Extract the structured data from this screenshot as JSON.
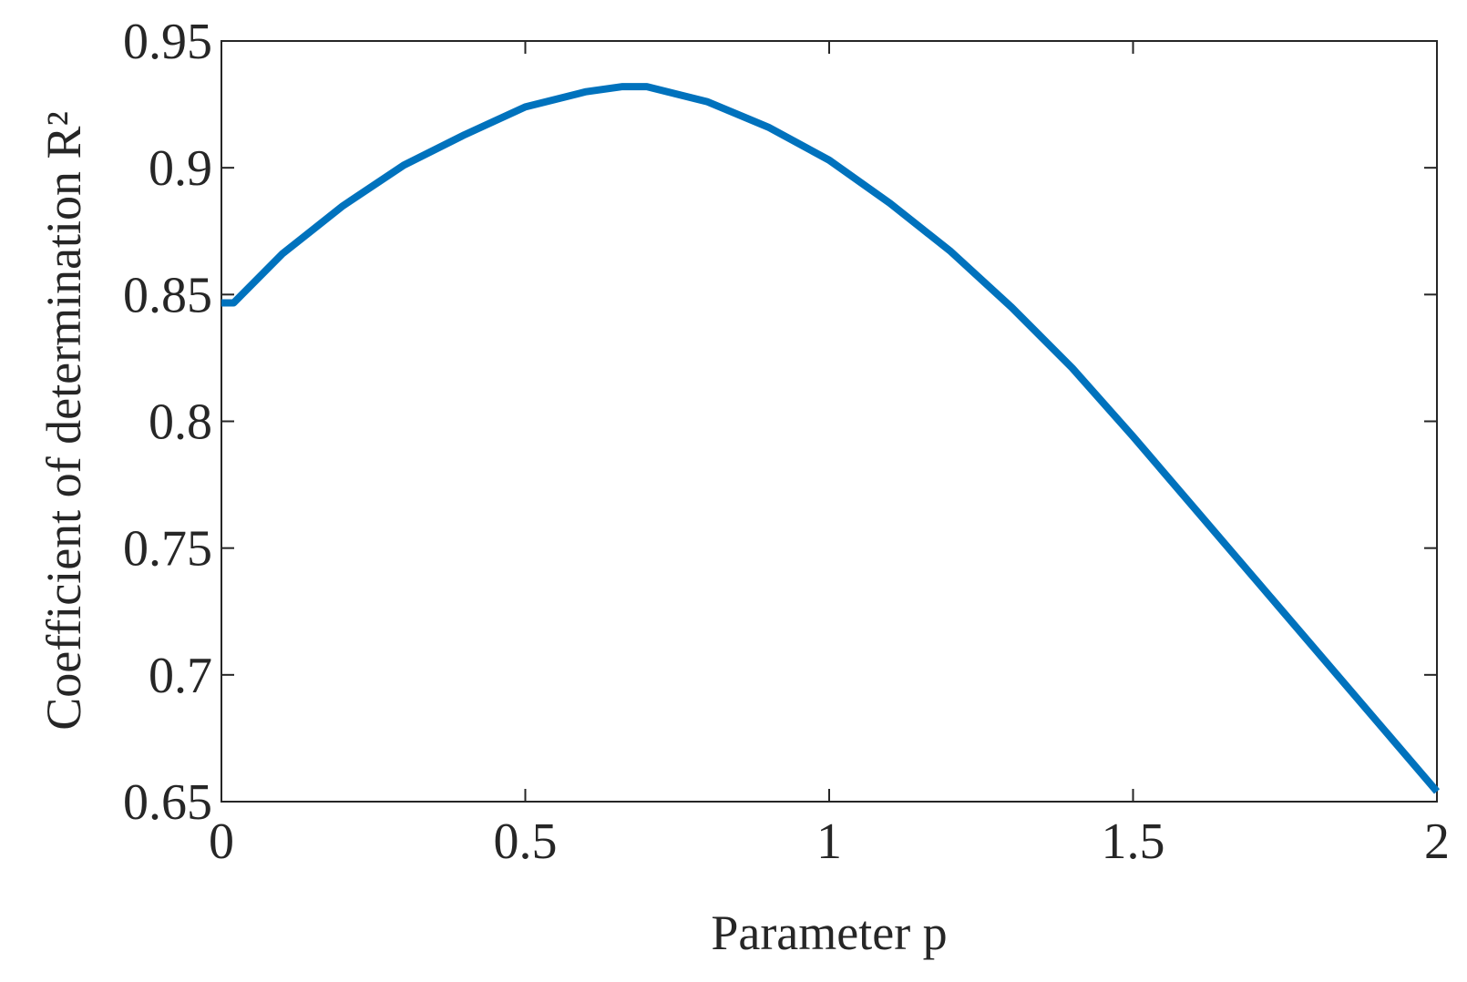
{
  "chart_data": {
    "type": "line",
    "xlabel": "Parameter p",
    "ylabel": "Coefficient of determination R²",
    "x": [
      0,
      0.02,
      0.1,
      0.2,
      0.3,
      0.4,
      0.5,
      0.6,
      0.66,
      0.7,
      0.8,
      0.9,
      1.0,
      1.1,
      1.2,
      1.3,
      1.4,
      1.5,
      1.6,
      1.7,
      1.8,
      1.9,
      2.0
    ],
    "series": [
      {
        "color": "#0072bd",
        "values": [
          0.8467,
          0.8467,
          0.866,
          0.885,
          0.901,
          0.913,
          0.924,
          0.93,
          0.932,
          0.932,
          0.926,
          0.916,
          0.903,
          0.886,
          0.867,
          0.845,
          0.821,
          0.794,
          0.766,
          0.738,
          0.71,
          0.682,
          0.654
        ]
      }
    ],
    "xlim": [
      0,
      2
    ],
    "xticks": [
      0,
      0.5,
      1,
      1.5,
      2
    ],
    "ylim": [
      0.65,
      0.95
    ],
    "yticks": [
      0.65,
      0.7,
      0.75,
      0.8,
      0.85,
      0.9,
      0.95
    ]
  }
}
